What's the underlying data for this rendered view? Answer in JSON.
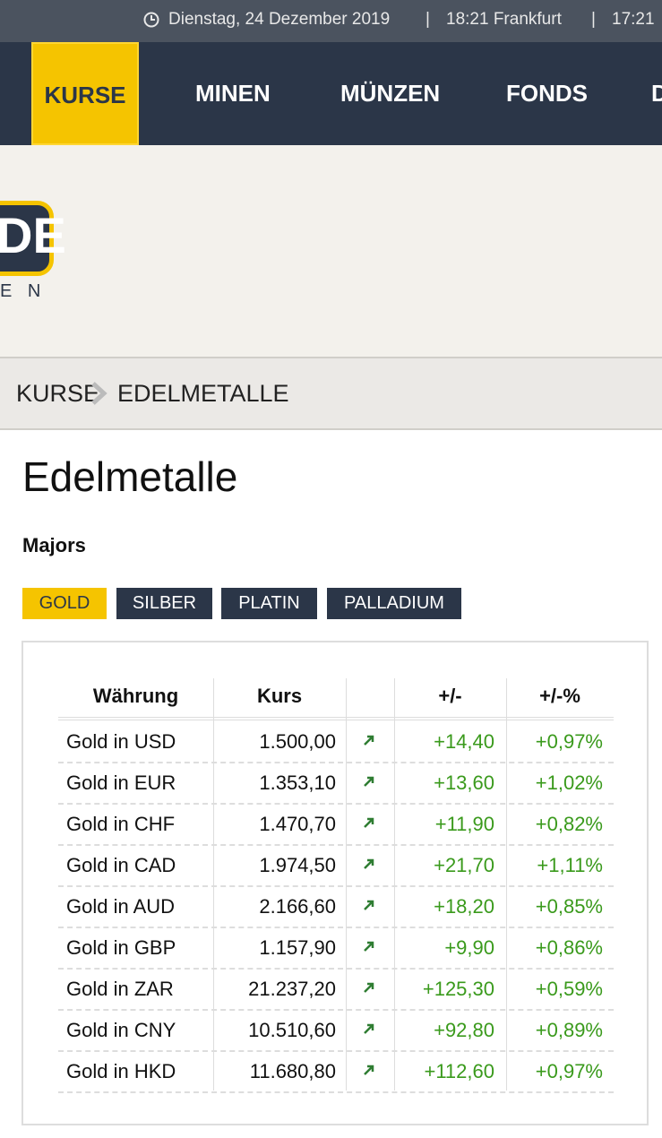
{
  "topbar": {
    "date": "Dienstag, 24 Dezember 2019",
    "time": "18:21 Frankfurt",
    "time2": "17:21"
  },
  "nav": [
    "KURSE",
    "MINEN",
    "MÜNZEN",
    "FONDS",
    "D"
  ],
  "logo": {
    "mark": "DE",
    "sub": "E N"
  },
  "breadcrumb": [
    "KURSE",
    "EDELMETALLE"
  ],
  "page": {
    "title": "Edelmetalle",
    "subtitle": "Majors"
  },
  "tabs": [
    "GOLD",
    "SILBER",
    "PLATIN",
    "PALLADIUM"
  ],
  "table": {
    "header": {
      "currency": "Währung",
      "price": "Kurs",
      "change": "+/-",
      "pct": "+/-%"
    },
    "rows": [
      [
        "Gold in USD",
        "1.500,00",
        "+14,40",
        "+0,97%"
      ],
      [
        "Gold in EUR",
        "1.353,10",
        "+13,60",
        "+1,02%"
      ],
      [
        "Gold in CHF",
        "1.470,70",
        "+11,90",
        "+0,82%"
      ],
      [
        "Gold in CAD",
        "1.974,50",
        "+21,70",
        "+1,11%"
      ],
      [
        "Gold in AUD",
        "2.166,60",
        "+18,20",
        "+0,85%"
      ],
      [
        "Gold in GBP",
        "1.157,90",
        "+9,90",
        "+0,86%"
      ],
      [
        "Gold in ZAR",
        "21.237,20",
        "+125,30",
        "+0,59%"
      ],
      [
        "Gold in CNY",
        "10.510,60",
        "+92,80",
        "+0,89%"
      ],
      [
        "Gold in HKD",
        "11.680,80",
        "+112,60",
        "+0,97%"
      ]
    ]
  }
}
